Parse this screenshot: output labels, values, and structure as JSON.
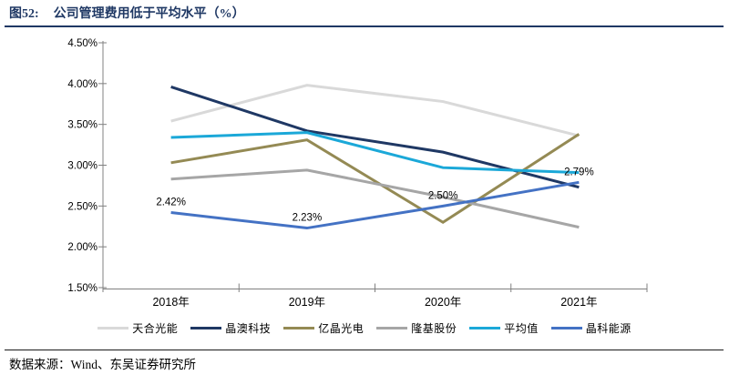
{
  "header": {
    "figure_label": "图52:",
    "title": "公司管理费用低于平均水平（%）"
  },
  "footer": {
    "source": "数据来源：Wind、东吴证券研究所"
  },
  "chart_data": {
    "type": "line",
    "title": "公司管理费用低于平均水平（%）",
    "xlabel": "",
    "ylabel": "",
    "categories": [
      "2018年",
      "2019年",
      "2020年",
      "2021年"
    ],
    "series": [
      {
        "name": "天合光能",
        "color": "#d9d9d9",
        "values": [
          3.54,
          3.98,
          3.78,
          3.36
        ]
      },
      {
        "name": "晶澳科技",
        "color": "#1f3864",
        "values": [
          3.96,
          3.42,
          3.16,
          2.73
        ]
      },
      {
        "name": "亿晶光电",
        "color": "#948a54",
        "values": [
          3.03,
          3.31,
          2.3,
          3.38
        ]
      },
      {
        "name": "隆基股份",
        "color": "#a6a6a6",
        "values": [
          2.83,
          2.94,
          2.61,
          2.24
        ]
      },
      {
        "name": "平均值",
        "color": "#1ba8d8",
        "values": [
          3.34,
          3.4,
          2.97,
          2.91
        ]
      },
      {
        "name": "晶科能源",
        "color": "#4472c4",
        "values": [
          2.42,
          2.23,
          2.5,
          2.79
        ],
        "data_labels": [
          "2.42%",
          "2.23%",
          "2.50%",
          "2.79%"
        ]
      }
    ],
    "ylim": [
      1.5,
      4.5
    ],
    "y_tick_step": 0.5,
    "y_tick_labels": [
      "4.50%",
      "4.00%",
      "3.50%",
      "3.00%",
      "2.50%",
      "2.00%",
      "1.50%"
    ],
    "grid": false,
    "legend_position": "bottom"
  }
}
